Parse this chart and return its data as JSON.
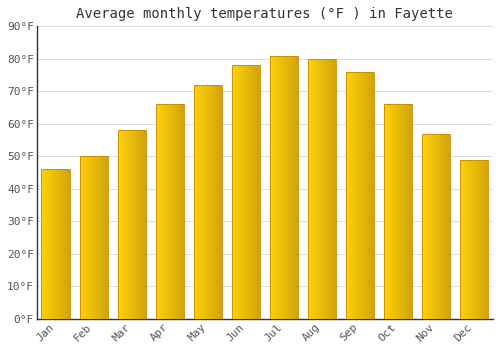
{
  "title": "Average monthly temperatures (°F ) in Fayette",
  "months": [
    "Jan",
    "Feb",
    "Mar",
    "Apr",
    "May",
    "Jun",
    "Jul",
    "Aug",
    "Sep",
    "Oct",
    "Nov",
    "Dec"
  ],
  "values": [
    46,
    50,
    58,
    66,
    72,
    78,
    81,
    80,
    76,
    66,
    57,
    49
  ],
  "bar_color_left": "#FFB300",
  "bar_color_right": "#FF8C00",
  "bar_color_mid": "#FFA500",
  "background_color": "#FFFFFF",
  "grid_color": "#DDDDDD",
  "ylim": [
    0,
    90
  ],
  "yticks": [
    0,
    10,
    20,
    30,
    40,
    50,
    60,
    70,
    80,
    90
  ],
  "title_fontsize": 10,
  "tick_fontsize": 8,
  "bar_width": 0.75
}
